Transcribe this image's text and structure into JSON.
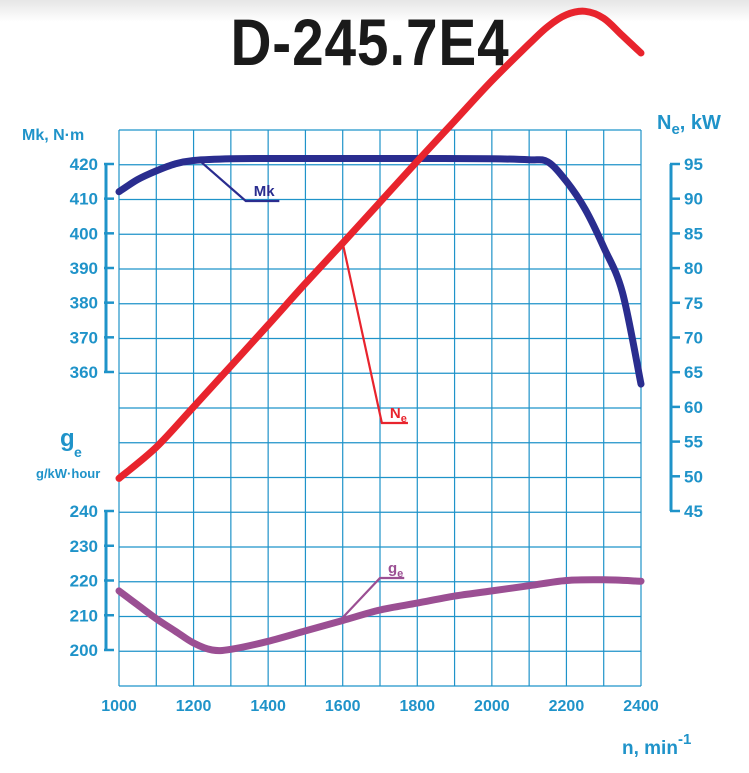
{
  "title": "D-245.7E4",
  "chart_data": {
    "type": "line",
    "title": "D-245.7E4",
    "grid": true,
    "x_axis": {
      "label": "n, min",
      "label_superscript": "-1",
      "range": [
        1000,
        2400
      ],
      "ticks": [
        "1000",
        "1200",
        "1400",
        "1600",
        "1800",
        "2000",
        "2200",
        "2400"
      ]
    },
    "axes": {
      "torque": {
        "label": "Mk, N·m",
        "range": [
          360,
          420
        ],
        "ticks": [
          "420",
          "410",
          "400",
          "390",
          "380",
          "370",
          "360"
        ],
        "position": "left-top"
      },
      "power": {
        "label_main": "N",
        "label_sub": "e",
        "label_unit": ", kW",
        "range": [
          45,
          95
        ],
        "ticks": [
          "95",
          "90",
          "85",
          "80",
          "75",
          "70",
          "65",
          "60",
          "55",
          "50",
          "45"
        ],
        "position": "right"
      },
      "consumption": {
        "label_main": "g",
        "label_sub": "e",
        "label_unit": "g/kW·hour",
        "range": [
          200,
          240
        ],
        "ticks": [
          "240",
          "230",
          "220",
          "210",
          "200"
        ],
        "position": "left-bottom"
      }
    },
    "series": [
      {
        "name": "Mk",
        "axis": "torque",
        "color": "#2a2d8f",
        "x": [
          1000,
          1050,
          1100,
          1150,
          1200,
          1300,
          1400,
          1600,
          1800,
          2000,
          2100,
          2150,
          2200,
          2250,
          2300,
          2350,
          2400
        ],
        "y": [
          412,
          415.5,
          418,
          420,
          421,
          421.5,
          421.6,
          421.6,
          421.6,
          421.5,
          421.2,
          420.6,
          415,
          407,
          396,
          383,
          356.5
        ]
      },
      {
        "name": "N",
        "name_sub": "e",
        "axis": "power",
        "color": "#e8242d",
        "x": [
          1000,
          1100,
          1200,
          1300,
          1400,
          1500,
          1600,
          1700,
          1800,
          1900,
          2000,
          2100,
          2150,
          2200,
          2250,
          2300,
          2350,
          2400
        ],
        "y": [
          49.7,
          54.2,
          60,
          65.9,
          71.8,
          77.8,
          83.6,
          89.5,
          95.4,
          101.2,
          107,
          112.3,
          114.8,
          116.5,
          117,
          116,
          113.5,
          111
        ]
      },
      {
        "name": "g",
        "name_sub": "e",
        "axis": "consumption",
        "color": "#9b4f93",
        "x": [
          1000,
          1050,
          1100,
          1150,
          1200,
          1250,
          1300,
          1400,
          1500,
          1600,
          1700,
          1800,
          1900,
          2000,
          2100,
          2200,
          2300,
          2400
        ],
        "y": [
          217,
          213,
          209,
          205.5,
          202,
          200,
          200.2,
          202.5,
          205.5,
          208.5,
          211.5,
          213.5,
          215.5,
          217,
          218.5,
          220,
          220.2,
          219.8
        ]
      }
    ],
    "label_leaders": [
      {
        "series": "Mk",
        "from_x": 1215,
        "to_x": 1340,
        "underline_to_x": 1430
      },
      {
        "series": "N",
        "from_x": 1600,
        "to_x": 1705,
        "underline_to_x": 1775
      },
      {
        "series": "g",
        "from_x": 1590,
        "to_x": 1700,
        "underline_to_x": 1765
      }
    ],
    "colors": {
      "grid": "#1f93c9",
      "axis_text": "#1f93c9"
    }
  }
}
